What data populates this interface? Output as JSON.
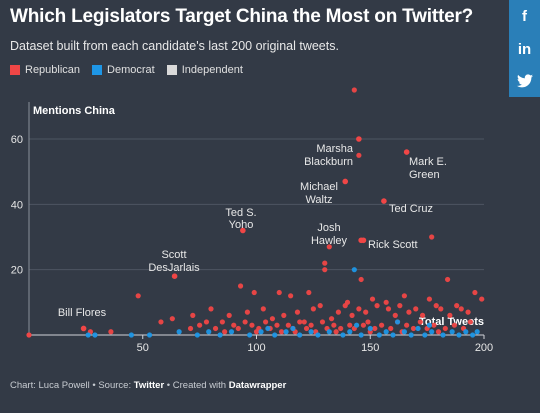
{
  "header": {
    "title": "Which Legislators Target China the Most on Twitter?",
    "subtitle": "Dataset built from each candidate's last 200 original tweets."
  },
  "legend": [
    {
      "label": "Republican",
      "color": "#f04646"
    },
    {
      "label": "Democrat",
      "color": "#1e96e6"
    },
    {
      "label": "Independent",
      "color": "#d9d9d9"
    }
  ],
  "share": {
    "facebook_icon": "f",
    "linkedin_icon": "in",
    "twitter_icon": "twitter-bird"
  },
  "footer": {
    "prefix": "Chart: Luca Powell • Source: ",
    "source": "Twitter",
    "middle": " • Created with ",
    "tool": "Datawrapper"
  },
  "chart_data": {
    "type": "scatter",
    "ylabel": "Mentions China",
    "xlabel": "Total Tweets",
    "xlim": [
      0,
      200
    ],
    "ylim": [
      0,
      75
    ],
    "xticks": [
      50,
      100,
      150,
      200
    ],
    "yticks": [
      20,
      40,
      60
    ],
    "grid": "horizontal",
    "colors": {
      "Republican": "#f04646",
      "Democrat": "#1e96e6",
      "Independent": "#d9d9d9"
    },
    "labeled_points": [
      {
        "label": "Bill Flores",
        "x": 24,
        "y": 2,
        "party": "Republican"
      },
      {
        "label": "Scott DesJarlais",
        "x": 64,
        "y": 18,
        "party": "Republican"
      },
      {
        "label": "Ted S. Yoho",
        "x": 94,
        "y": 32,
        "party": "Republican"
      },
      {
        "label": "Michael Waltz",
        "x": 139,
        "y": 47,
        "party": "Republican"
      },
      {
        "label": "Josh Hawley",
        "x": 146,
        "y": 29,
        "party": "Republican"
      },
      {
        "label": "Marsha Blackburn",
        "x": 145,
        "y": 60,
        "party": "Republican"
      },
      {
        "label": "Mark E. Green",
        "x": 166,
        "y": 56,
        "party": "Republican"
      },
      {
        "label": "Ted Cruz",
        "x": 156,
        "y": 41,
        "party": "Republican"
      },
      {
        "label": "Rick Scott",
        "x": 147,
        "y": 29,
        "party": "Republican"
      }
    ],
    "series": [
      {
        "name": "Republican",
        "points": [
          [
            143,
            75
          ],
          [
            145,
            55
          ],
          [
            177,
            30
          ],
          [
            132,
            27
          ],
          [
            130,
            22
          ],
          [
            93,
            15
          ],
          [
            48,
            12
          ],
          [
            184,
            17
          ],
          [
            146,
            17
          ],
          [
            99,
            13
          ],
          [
            110,
            13
          ],
          [
            115,
            12
          ],
          [
            123,
            13
          ],
          [
            140,
            10
          ],
          [
            157,
            10
          ],
          [
            165,
            12
          ],
          [
            176,
            11
          ],
          [
            188,
            9
          ],
          [
            196,
            13
          ],
          [
            199,
            11
          ],
          [
            130,
            20
          ],
          [
            80,
            8
          ],
          [
            72,
            6
          ],
          [
            63,
            5
          ],
          [
            58,
            4
          ],
          [
            88,
            6
          ],
          [
            96,
            7
          ],
          [
            103,
            8
          ],
          [
            107,
            5
          ],
          [
            112,
            6
          ],
          [
            118,
            7
          ],
          [
            121,
            4
          ],
          [
            125,
            8
          ],
          [
            128,
            9
          ],
          [
            133,
            5
          ],
          [
            136,
            7
          ],
          [
            139,
            9
          ],
          [
            142,
            6
          ],
          [
            145,
            8
          ],
          [
            148,
            7
          ],
          [
            151,
            11
          ],
          [
            153,
            9
          ],
          [
            158,
            8
          ],
          [
            161,
            6
          ],
          [
            163,
            9
          ],
          [
            167,
            7
          ],
          [
            170,
            8
          ],
          [
            173,
            6
          ],
          [
            179,
            9
          ],
          [
            181,
            8
          ],
          [
            185,
            6
          ],
          [
            190,
            8
          ],
          [
            193,
            7
          ],
          [
            71,
            2
          ],
          [
            75,
            3
          ],
          [
            82,
            2
          ],
          [
            85,
            4
          ],
          [
            90,
            3
          ],
          [
            92,
            2
          ],
          [
            95,
            4
          ],
          [
            98,
            3
          ],
          [
            101,
            2
          ],
          [
            104,
            4
          ],
          [
            106,
            2
          ],
          [
            109,
            3
          ],
          [
            111,
            1
          ],
          [
            114,
            3
          ],
          [
            116,
            2
          ],
          [
            119,
            4
          ],
          [
            122,
            2
          ],
          [
            124,
            3
          ],
          [
            126,
            1
          ],
          [
            129,
            4
          ],
          [
            131,
            2
          ],
          [
            134,
            3
          ],
          [
            137,
            2
          ],
          [
            141,
            3
          ],
          [
            143,
            2
          ],
          [
            147,
            3
          ],
          [
            149,
            4
          ],
          [
            152,
            2
          ],
          [
            155,
            3
          ],
          [
            159,
            2
          ],
          [
            162,
            4
          ],
          [
            166,
            3
          ],
          [
            169,
            2
          ],
          [
            172,
            4
          ],
          [
            175,
            2
          ],
          [
            178,
            3
          ],
          [
            183,
            2
          ],
          [
            187,
            3
          ],
          [
            191,
            2
          ],
          [
            194,
            4
          ],
          [
            36,
            1
          ],
          [
            27,
            1
          ],
          [
            78,
            4
          ],
          [
            86,
            1
          ],
          [
            100,
            1
          ],
          [
            117,
            1
          ],
          [
            135,
            1
          ],
          [
            150,
            1
          ],
          [
            164,
            1
          ],
          [
            180,
            1
          ]
        ]
      },
      {
        "name": "Democrat",
        "points": [
          [
            143,
            20
          ],
          [
            162,
            4
          ],
          [
            26,
            0
          ],
          [
            29,
            0
          ],
          [
            45,
            0
          ],
          [
            53,
            0
          ],
          [
            66,
            1
          ],
          [
            74,
            0
          ],
          [
            79,
            1
          ],
          [
            84,
            0
          ],
          [
            89,
            1
          ],
          [
            97,
            0
          ],
          [
            102,
            1
          ],
          [
            108,
            0
          ],
          [
            113,
            1
          ],
          [
            119,
            0
          ],
          [
            124,
            1
          ],
          [
            127,
            0
          ],
          [
            132,
            1
          ],
          [
            138,
            0
          ],
          [
            141,
            1
          ],
          [
            146,
            0
          ],
          [
            150,
            2
          ],
          [
            154,
            0
          ],
          [
            157,
            1
          ],
          [
            160,
            0
          ],
          [
            165,
            1
          ],
          [
            168,
            0
          ],
          [
            171,
            2
          ],
          [
            174,
            0
          ],
          [
            177,
            1
          ],
          [
            182,
            0
          ],
          [
            186,
            1
          ],
          [
            189,
            0
          ],
          [
            192,
            1
          ],
          [
            195,
            0
          ],
          [
            197,
            1
          ],
          [
            105,
            2
          ],
          [
            116,
            2
          ],
          [
            144,
            3
          ],
          [
            176,
            3
          ]
        ]
      },
      {
        "name": "Independent",
        "points": []
      }
    ]
  }
}
